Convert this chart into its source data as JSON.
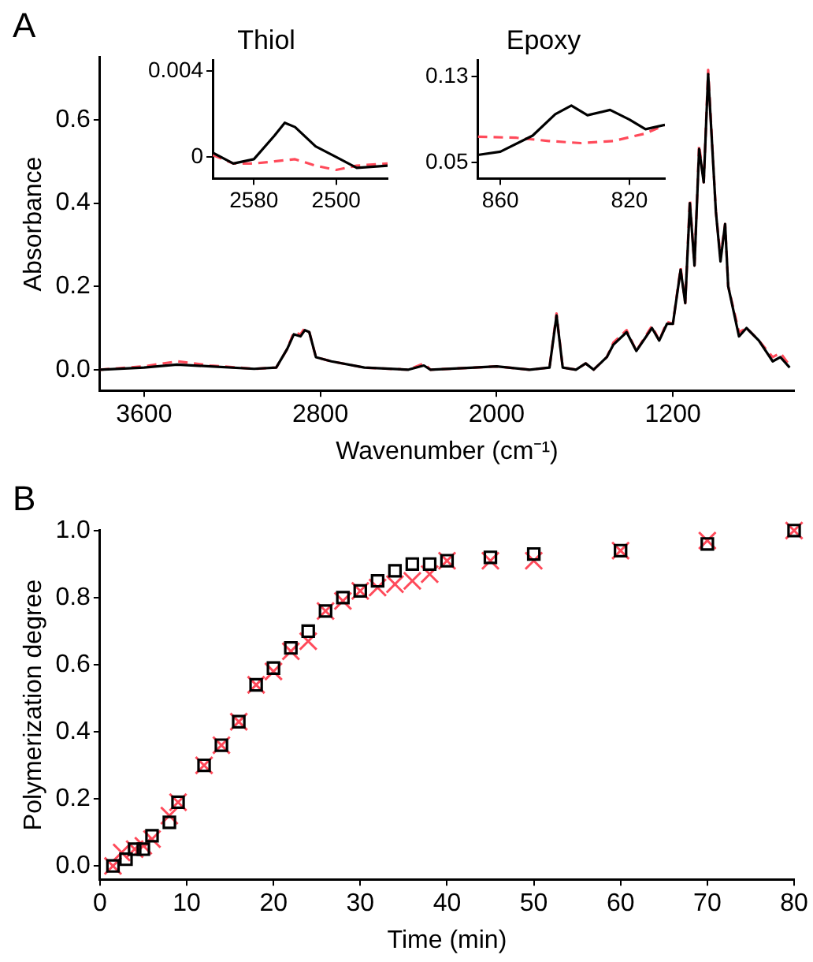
{
  "chart_data": [
    {
      "type": "line",
      "title": "A",
      "xlabel": "Wavenumber (cm⁻¹)",
      "ylabel": "Absorbance",
      "xlim": [
        3800,
        650
      ],
      "ylim": [
        -0.05,
        0.75
      ],
      "xticks": [
        3600,
        2800,
        2000,
        1200
      ],
      "yticks": [
        {
          "value": 0,
          "label": "0.0"
        },
        {
          "value": 0.2,
          "label": "0.2"
        },
        {
          "value": 0.4,
          "label": "0.4"
        },
        {
          "value": 0.6,
          "label": "0.6"
        }
      ],
      "grid": false,
      "legend": false,
      "series": [
        {
          "color": "#000000",
          "line_style": "solid",
          "x": [
            3800,
            3600,
            3450,
            3300,
            3100,
            3000,
            2950,
            2920,
            2890,
            2870,
            2850,
            2820,
            2750,
            2600,
            2400,
            2330,
            2300,
            2100,
            2000,
            1850,
            1760,
            1728,
            1700,
            1640,
            1596,
            1560,
            1500,
            1470,
            1410,
            1366,
            1295,
            1262,
            1227,
            1200,
            1165,
            1144,
            1123,
            1102,
            1081,
            1060,
            1040,
            1005,
            984,
            963,
            949,
            900,
            866,
            810,
            747,
            712,
            670
          ],
          "values": [
            0.0,
            0.005,
            0.012,
            0.008,
            0.002,
            0.005,
            0.05,
            0.085,
            0.08,
            0.095,
            0.09,
            0.03,
            0.02,
            0.005,
            0.0,
            0.01,
            0.0,
            0.005,
            0.008,
            0.0,
            0.005,
            0.13,
            0.005,
            0.0,
            0.015,
            0.0,
            0.03,
            0.06,
            0.09,
            0.045,
            0.1,
            0.07,
            0.11,
            0.11,
            0.24,
            0.16,
            0.4,
            0.25,
            0.53,
            0.45,
            0.71,
            0.38,
            0.26,
            0.35,
            0.2,
            0.08,
            0.1,
            0.07,
            0.02,
            0.03,
            0.005
          ]
        },
        {
          "color": "#ff4a5a",
          "line_style": "dashed",
          "x": [
            3800,
            3600,
            3450,
            3300,
            3100,
            3000,
            2950,
            2920,
            2890,
            2870,
            2850,
            2820,
            2750,
            2600,
            2400,
            2330,
            2300,
            2100,
            2000,
            1850,
            1760,
            1728,
            1700,
            1640,
            1596,
            1560,
            1500,
            1470,
            1410,
            1366,
            1295,
            1262,
            1227,
            1200,
            1165,
            1144,
            1123,
            1102,
            1081,
            1060,
            1040,
            1005,
            984,
            963,
            949,
            900,
            866,
            810,
            747,
            712,
            670
          ],
          "values": [
            0.0,
            0.008,
            0.02,
            0.01,
            0.002,
            0.005,
            0.05,
            0.09,
            0.085,
            0.1,
            0.09,
            0.03,
            0.02,
            0.005,
            0.0,
            0.015,
            0.0,
            0.005,
            0.008,
            0.0,
            0.005,
            0.135,
            0.005,
            0.0,
            0.015,
            0.0,
            0.03,
            0.065,
            0.095,
            0.045,
            0.105,
            0.07,
            0.115,
            0.11,
            0.245,
            0.16,
            0.41,
            0.25,
            0.54,
            0.45,
            0.72,
            0.38,
            0.27,
            0.35,
            0.2,
            0.09,
            0.1,
            0.07,
            0.03,
            0.04,
            0.01
          ]
        }
      ]
    },
    {
      "type": "line",
      "title": "Thiol",
      "xlim": [
        2620,
        2450
      ],
      "ylim": [
        -0.001,
        0.0045
      ],
      "xticks": [
        2580,
        2500
      ],
      "yticks": [
        0,
        0.004
      ],
      "grid": false,
      "legend": false,
      "series": [
        {
          "color": "#000000",
          "line_style": "solid",
          "x": [
            2620,
            2600,
            2580,
            2560,
            2550,
            2540,
            2520,
            2500,
            2480,
            2450
          ],
          "values": [
            0.0002,
            -0.0003,
            -0.0001,
            0.001,
            0.0016,
            0.0014,
            0.0005,
            0.0,
            -0.0005,
            -0.0004
          ]
        },
        {
          "color": "#ff4a5a",
          "line_style": "dashed",
          "x": [
            2620,
            2600,
            2580,
            2560,
            2540,
            2520,
            2500,
            2480,
            2450
          ],
          "values": [
            0.0001,
            -0.0003,
            -0.0003,
            -0.0002,
            -0.0001,
            -0.0004,
            -0.0006,
            -0.0004,
            -0.0003
          ]
        }
      ]
    },
    {
      "type": "line",
      "title": "Epoxy",
      "xlim": [
        867,
        809
      ],
      "ylim": [
        0.035,
        0.145
      ],
      "xticks": [
        860,
        820
      ],
      "yticks": [
        0.05,
        0.13
      ],
      "grid": false,
      "legend": false,
      "series": [
        {
          "color": "#000000",
          "line_style": "solid",
          "x": [
            867,
            860,
            850,
            843,
            838,
            833,
            826,
            820,
            815,
            809
          ],
          "values": [
            0.057,
            0.06,
            0.075,
            0.095,
            0.103,
            0.094,
            0.099,
            0.09,
            0.081,
            0.085
          ]
        },
        {
          "color": "#ff4a5a",
          "line_style": "dashed",
          "x": [
            867,
            855,
            845,
            835,
            825,
            815,
            809
          ],
          "values": [
            0.074,
            0.073,
            0.07,
            0.068,
            0.07,
            0.077,
            0.085
          ]
        }
      ]
    },
    {
      "type": "scatter",
      "title": "B",
      "xlabel": "Time (min)",
      "ylabel": "Polymerization degree",
      "xlim": [
        0,
        80
      ],
      "ylim": [
        -0.04,
        1.0
      ],
      "xticks": [
        0,
        10,
        20,
        30,
        40,
        50,
        60,
        70,
        80
      ],
      "yticks": [
        {
          "value": 0,
          "label": "0.0"
        },
        {
          "value": 0.2,
          "label": "0.2"
        },
        {
          "value": 0.4,
          "label": "0.4"
        },
        {
          "value": 0.6,
          "label": "0.6"
        },
        {
          "value": 0.8,
          "label": "0.8"
        },
        {
          "value": 1,
          "label": "1.0"
        }
      ],
      "grid": false,
      "legend": false,
      "series": [
        {
          "color": "#000000",
          "marker": "square",
          "x": [
            1.5,
            3,
            4,
            5,
            6,
            8,
            9,
            12,
            14,
            16,
            18,
            20,
            22,
            24,
            26,
            28,
            30,
            32,
            34,
            36,
            38,
            40,
            45,
            50,
            60,
            70,
            80
          ],
          "values": [
            0.0,
            0.02,
            0.05,
            0.05,
            0.09,
            0.13,
            0.19,
            0.3,
            0.36,
            0.43,
            0.54,
            0.59,
            0.65,
            0.7,
            0.76,
            0.8,
            0.82,
            0.85,
            0.88,
            0.9,
            0.9,
            0.91,
            0.92,
            0.93,
            0.94,
            0.96,
            1.0
          ]
        },
        {
          "color": "#ff4a5a",
          "marker": "cross",
          "x": [
            1.5,
            2.5,
            4,
            5,
            6,
            8,
            9,
            12,
            14,
            16,
            18,
            20,
            22,
            24,
            26,
            28,
            30,
            32,
            34,
            36,
            38,
            40,
            45,
            50,
            60,
            70,
            80
          ],
          "values": [
            0.0,
            0.04,
            0.05,
            0.06,
            0.08,
            0.15,
            0.19,
            0.3,
            0.36,
            0.43,
            0.54,
            0.58,
            0.64,
            0.67,
            0.76,
            0.79,
            0.82,
            0.83,
            0.84,
            0.85,
            0.87,
            0.91,
            0.91,
            0.91,
            0.94,
            0.97,
            1.0
          ]
        }
      ]
    }
  ]
}
